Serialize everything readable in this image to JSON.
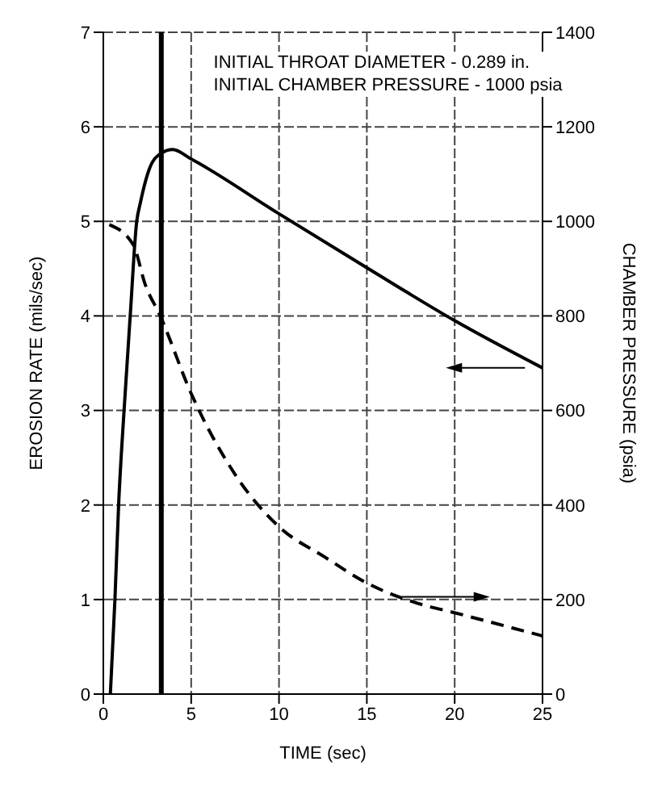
{
  "chart_data": {
    "type": "line",
    "xlabel": "TIME (sec)",
    "ylabel": "EROSION RATE (mils/sec)",
    "y2label": "CHAMBER PRESSURE (psia)",
    "annotations": [
      "INITIAL THROAT DIAMETER - 0.289 in.",
      "INITIAL CHAMBER PRESSURE - 1000 psia"
    ],
    "xlim": [
      0,
      25
    ],
    "xticks": [
      0,
      5,
      10,
      15,
      20,
      25
    ],
    "ylim": [
      0,
      7
    ],
    "yticks": [
      0,
      1,
      2,
      3,
      4,
      5,
      6,
      7
    ],
    "y2lim": [
      0,
      1400
    ],
    "y2ticks": [
      0,
      200,
      400,
      600,
      800,
      1000,
      1200,
      1400
    ],
    "grid": true,
    "ref_lines": [
      {
        "axis": "x",
        "value": 3.3,
        "color": "#000000",
        "line_style": "solid"
      }
    ],
    "series": [
      {
        "color": "#000000",
        "line_style": "solid",
        "x": [
          0.4,
          0.66,
          0.87,
          1.18,
          1.53,
          1.9,
          2.1,
          2.63,
          3.29,
          3.95,
          5,
          10,
          15,
          20,
          25
        ],
        "values": [
          0,
          1,
          2,
          3,
          4,
          5,
          5.19,
          5.56,
          5.72,
          5.76,
          5.66,
          5.08,
          4.51,
          3.95,
          3.45
        ]
      },
      {
        "color": "#000000",
        "line_style": "dashed",
        "axis": "y2",
        "x": [
          0.34,
          1.71,
          2.37,
          3.24,
          5,
          7.37,
          10,
          12.6,
          15,
          17.9,
          20,
          25
        ],
        "values": [
          993,
          950,
          868,
          800,
          636,
          472,
          354,
          290,
          235,
          192,
          172,
          123
        ]
      }
    ]
  }
}
